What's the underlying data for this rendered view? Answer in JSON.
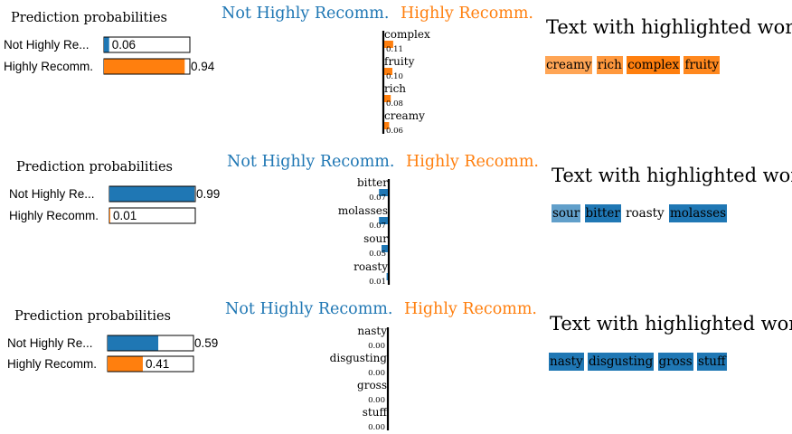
{
  "colors": {
    "not_highly": "#1f77b4",
    "highly": "#ff7f0e"
  },
  "chart_data": [
    {
      "type": "bar",
      "prediction_title": "Prediction probabilities",
      "class_titles": {
        "not_highly": "Not Highly Recomm.",
        "highly": "Highly Recomm."
      },
      "probabilities": [
        {
          "label": "Not Highly Re...",
          "value": 0.06,
          "display": "0.06",
          "color_key": "not_highly"
        },
        {
          "label": "Highly Recomm.",
          "value": 0.94,
          "display": "0.94",
          "color_key": "highly"
        }
      ],
      "features": [
        {
          "word": "complex",
          "weight": 0.11,
          "display": "0.11",
          "side": "highly"
        },
        {
          "word": "fruity",
          "weight": 0.1,
          "display": "0.10",
          "side": "highly"
        },
        {
          "word": "rich",
          "weight": 0.08,
          "display": "0.08",
          "side": "highly"
        },
        {
          "word": "creamy",
          "weight": 0.06,
          "display": "0.06",
          "side": "highly"
        }
      ],
      "text_title": "Text with highlighted words",
      "highlighted_words": [
        {
          "word": "creamy",
          "side": "highly",
          "intensity": 0.55
        },
        {
          "word": "rich",
          "side": "highly",
          "intensity": 0.7
        },
        {
          "word": "complex",
          "side": "highly",
          "intensity": 1.0
        },
        {
          "word": "fruity",
          "side": "highly",
          "intensity": 0.9
        }
      ]
    },
    {
      "type": "bar",
      "prediction_title": "Prediction probabilities",
      "class_titles": {
        "not_highly": "Not Highly Recomm.",
        "highly": "Highly Recomm."
      },
      "probabilities": [
        {
          "label": "Not Highly Re...",
          "value": 0.99,
          "display": "0.99",
          "color_key": "not_highly"
        },
        {
          "label": "Highly Recomm.",
          "value": 0.01,
          "display": "0.01",
          "color_key": "highly"
        }
      ],
      "features": [
        {
          "word": "bitter",
          "weight": 0.07,
          "display": "0.07",
          "side": "not_highly"
        },
        {
          "word": "molasses",
          "weight": 0.07,
          "display": "0.07",
          "side": "not_highly"
        },
        {
          "word": "sour",
          "weight": 0.05,
          "display": "0.05",
          "side": "not_highly"
        },
        {
          "word": "roasty",
          "weight": 0.01,
          "display": "0.01",
          "side": "not_highly"
        }
      ],
      "text_title": "Text with highlighted words",
      "highlighted_words": [
        {
          "word": "sour",
          "side": "not_highly",
          "intensity": 0.55
        },
        {
          "word": "bitter",
          "side": "not_highly",
          "intensity": 1.0
        },
        {
          "word": "roasty",
          "side": "not_highly",
          "intensity": 0.0
        },
        {
          "word": "molasses",
          "side": "not_highly",
          "intensity": 1.0
        }
      ]
    },
    {
      "type": "bar",
      "prediction_title": "Prediction probabilities",
      "class_titles": {
        "not_highly": "Not Highly Recomm.",
        "highly": "Highly Recomm."
      },
      "probabilities": [
        {
          "label": "Not Highly Re...",
          "value": 0.59,
          "display": "0.59",
          "color_key": "not_highly"
        },
        {
          "label": "Highly Recomm.",
          "value": 0.41,
          "display": "0.41",
          "color_key": "highly"
        }
      ],
      "features": [
        {
          "word": "nasty",
          "weight": 0.0,
          "display": "0.00",
          "side": "not_highly"
        },
        {
          "word": "disgusting",
          "weight": 0.0,
          "display": "0.00",
          "side": "not_highly"
        },
        {
          "word": "gross",
          "weight": 0.0,
          "display": "0.00",
          "side": "not_highly"
        },
        {
          "word": "stuff",
          "weight": 0.0,
          "display": "0.00",
          "side": "not_highly"
        }
      ],
      "text_title": "Text with highlighted words",
      "highlighted_words": [
        {
          "word": "nasty",
          "side": "not_highly",
          "intensity": 1.0
        },
        {
          "word": "disgusting",
          "side": "not_highly",
          "intensity": 1.0
        },
        {
          "word": "gross",
          "side": "not_highly",
          "intensity": 1.0
        },
        {
          "word": "stuff",
          "side": "not_highly",
          "intensity": 1.0
        }
      ]
    }
  ]
}
